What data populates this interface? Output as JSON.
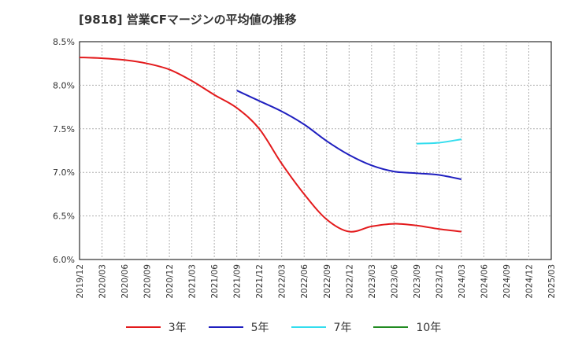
{
  "title": "[9818]  営業CFマージンの平均値の推移",
  "chart_data": {
    "type": "line",
    "x": [
      "2019/12",
      "2020/03",
      "2020/06",
      "2020/09",
      "2020/12",
      "2021/03",
      "2021/06",
      "2021/09",
      "2021/12",
      "2022/03",
      "2022/06",
      "2022/09",
      "2022/12",
      "2023/03",
      "2023/06",
      "2023/09",
      "2023/12",
      "2024/03",
      "2024/06",
      "2024/09",
      "2024/12",
      "2025/03"
    ],
    "ylim": [
      6.0,
      8.5
    ],
    "yticks": [
      "6.0%",
      "6.5%",
      "7.0%",
      "7.5%",
      "8.0%",
      "8.5%"
    ],
    "ytick_values": [
      6.0,
      6.5,
      7.0,
      7.5,
      8.0,
      8.5
    ],
    "grid": true,
    "legend_position": "bottom",
    "series": [
      {
        "name": "3年",
        "color": "#e31a1c",
        "values": [
          8.32,
          8.31,
          8.29,
          8.25,
          8.18,
          8.05,
          7.89,
          7.74,
          7.5,
          7.1,
          6.75,
          6.46,
          6.32,
          6.38,
          6.41,
          6.39,
          6.35,
          6.32,
          null,
          null,
          null,
          null
        ]
      },
      {
        "name": "5年",
        "color": "#1f1fbf",
        "values": [
          null,
          null,
          null,
          null,
          null,
          null,
          null,
          7.94,
          7.82,
          7.7,
          7.55,
          7.36,
          7.2,
          7.08,
          7.01,
          6.99,
          6.97,
          6.92,
          null,
          null,
          null,
          null
        ]
      },
      {
        "name": "7年",
        "color": "#33ddee",
        "values": [
          null,
          null,
          null,
          null,
          null,
          null,
          null,
          null,
          null,
          null,
          null,
          null,
          null,
          null,
          null,
          7.33,
          7.34,
          7.38,
          null,
          null,
          null,
          null
        ]
      },
      {
        "name": "10年",
        "color": "#228b22",
        "values": [
          null,
          null,
          null,
          null,
          null,
          null,
          null,
          null,
          null,
          null,
          null,
          null,
          null,
          null,
          null,
          null,
          null,
          null,
          null,
          null,
          null,
          null
        ]
      }
    ]
  }
}
